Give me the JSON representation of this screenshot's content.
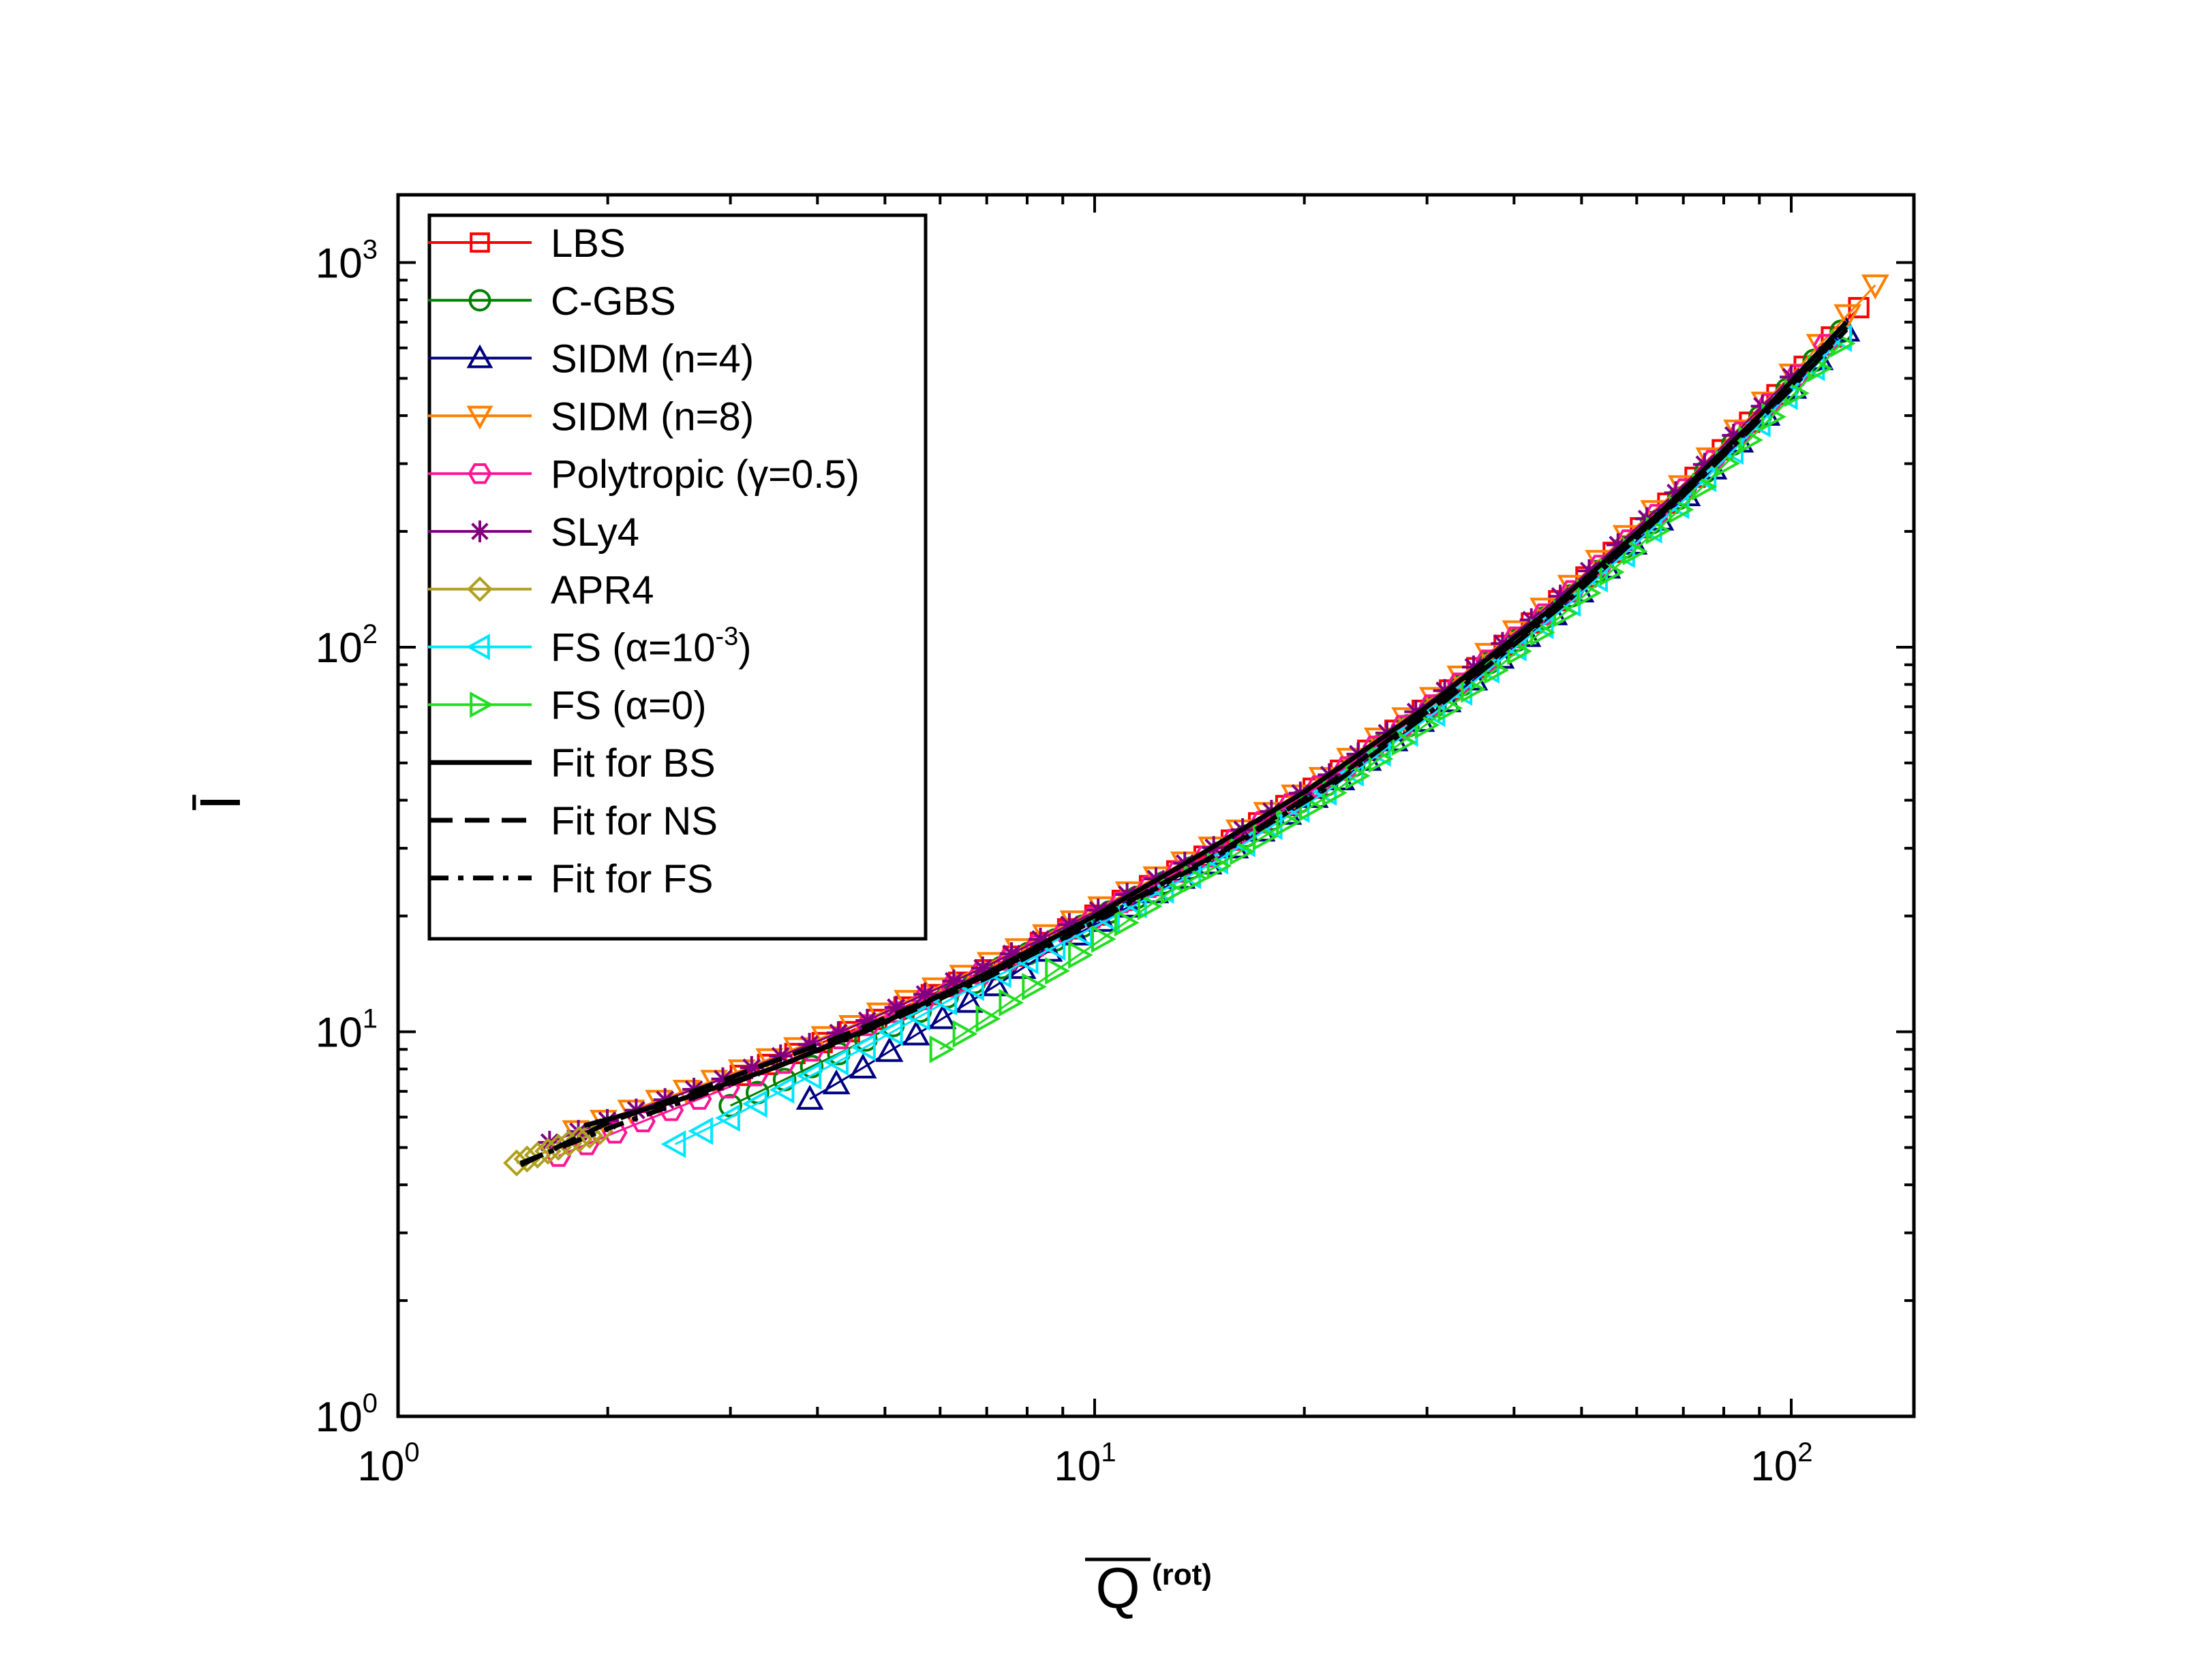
{
  "chart_data": {
    "type": "scatter",
    "title": "",
    "xlabel": "Q̄(rot)",
    "xlabel_main": "Q",
    "xlabel_sup": "(rot)",
    "ylabel": "Ī",
    "xscale": "log",
    "yscale": "log",
    "xlim": [
      1,
      150
    ],
    "ylim": [
      1,
      1500
    ],
    "x_ticks": [
      {
        "value": 1,
        "base": "10",
        "exp": "0"
      },
      {
        "value": 10,
        "base": "10",
        "exp": "1"
      },
      {
        "value": 100,
        "base": "10",
        "exp": "2"
      }
    ],
    "y_ticks": [
      {
        "value": 1,
        "base": "10",
        "exp": "0"
      },
      {
        "value": 10,
        "base": "10",
        "exp": "1"
      },
      {
        "value": 100,
        "base": "10",
        "exp": "2"
      },
      {
        "value": 1000,
        "base": "10",
        "exp": "3"
      }
    ],
    "legend_position": "top-left",
    "series": [
      {
        "name": "LBS",
        "label": "LBS",
        "marker": "square",
        "color": "#ff0000",
        "x_range": [
          3.1,
          125
        ],
        "n": 42
      },
      {
        "name": "C-GBS",
        "label": "C-GBS",
        "marker": "circle",
        "color": "#008000",
        "x_range": [
          3.0,
          118
        ],
        "n": 42
      },
      {
        "name": "SIDM (n=4)",
        "label": "SIDM (n=4)",
        "marker": "triangle-up",
        "color": "#000080",
        "x_range": [
          3.9,
          120
        ],
        "n": 40
      },
      {
        "name": "SIDM (n=8)",
        "label": "SIDM (n=8)",
        "marker": "triangle-down",
        "color": "#ff7f00",
        "x_range": [
          1.8,
          132
        ],
        "n": 48
      },
      {
        "name": "Polytropic (γ=0.5)",
        "label_pre": "Polytropic (",
        "label_sym": "γ",
        "label_post": "=0.5)",
        "marker": "hexagon",
        "color": "#ff1493",
        "x_range": [
          1.7,
          112
        ],
        "n": 46
      },
      {
        "name": "SLy4",
        "label": "SLy4",
        "marker": "asterisk",
        "color": "#800080",
        "x_range": [
          1.65,
          100
        ],
        "n": 44
      },
      {
        "name": "APR4",
        "label": "APR4",
        "marker": "diamond",
        "color": "#b0a020",
        "x_range": [
          1.48,
          1.95
        ],
        "n": 9
      },
      {
        "name": "FS (α=10^-3)",
        "label_pre": "FS (",
        "label_sym": "α",
        "label_mid": "=10",
        "label_sup": "-3",
        "label_post": ")",
        "marker": "triangle-left",
        "color": "#00e5ff",
        "x_range": [
          2.5,
          118
        ],
        "n": 44
      },
      {
        "name": "FS (α=0)",
        "label_pre": "FS (",
        "label_sym": "α",
        "label_post": "=0)",
        "marker": "triangle-right",
        "color": "#22dd22",
        "x_range": [
          6.0,
          118
        ],
        "n": 40
      },
      {
        "name": "Fit for BS",
        "label": "Fit for BS",
        "style": "solid",
        "color": "#000000",
        "points": [
          [
            1.85,
            5.7
          ],
          [
            2.5,
            6.6
          ],
          [
            3.5,
            8.1
          ],
          [
            5,
            10.6
          ],
          [
            7,
            14.2
          ],
          [
            10,
            20
          ],
          [
            14,
            28.5
          ],
          [
            20,
            42
          ],
          [
            30,
            70
          ],
          [
            45,
            125
          ],
          [
            65,
            225
          ],
          [
            90,
            400
          ],
          [
            120,
            700
          ]
        ]
      },
      {
        "name": "Fit for NS",
        "label": "Fit for NS",
        "style": "dash",
        "color": "#000000",
        "points": [
          [
            1.5,
            4.5
          ],
          [
            2,
            5.8
          ],
          [
            3,
            7.6
          ],
          [
            4.5,
            10
          ],
          [
            7,
            14
          ],
          [
            10,
            19.5
          ],
          [
            15,
            29
          ],
          [
            22,
            45
          ],
          [
            32,
            74
          ],
          [
            48,
            135
          ],
          [
            70,
            250
          ],
          [
            100,
            480
          ],
          [
            120,
            680
          ]
        ]
      },
      {
        "name": "Fit for FS",
        "label": "Fit for FS",
        "style": "dashdot",
        "color": "#000000",
        "points": [
          [
            1.5,
            4.55
          ],
          [
            2,
            5.6
          ],
          [
            3,
            7.3
          ],
          [
            4.5,
            9.7
          ],
          [
            7,
            13.8
          ],
          [
            10,
            19.3
          ],
          [
            15,
            28.8
          ],
          [
            22,
            44
          ],
          [
            32,
            73
          ],
          [
            48,
            133
          ],
          [
            70,
            248
          ],
          [
            100,
            470
          ],
          [
            120,
            670
          ]
        ]
      }
    ]
  }
}
